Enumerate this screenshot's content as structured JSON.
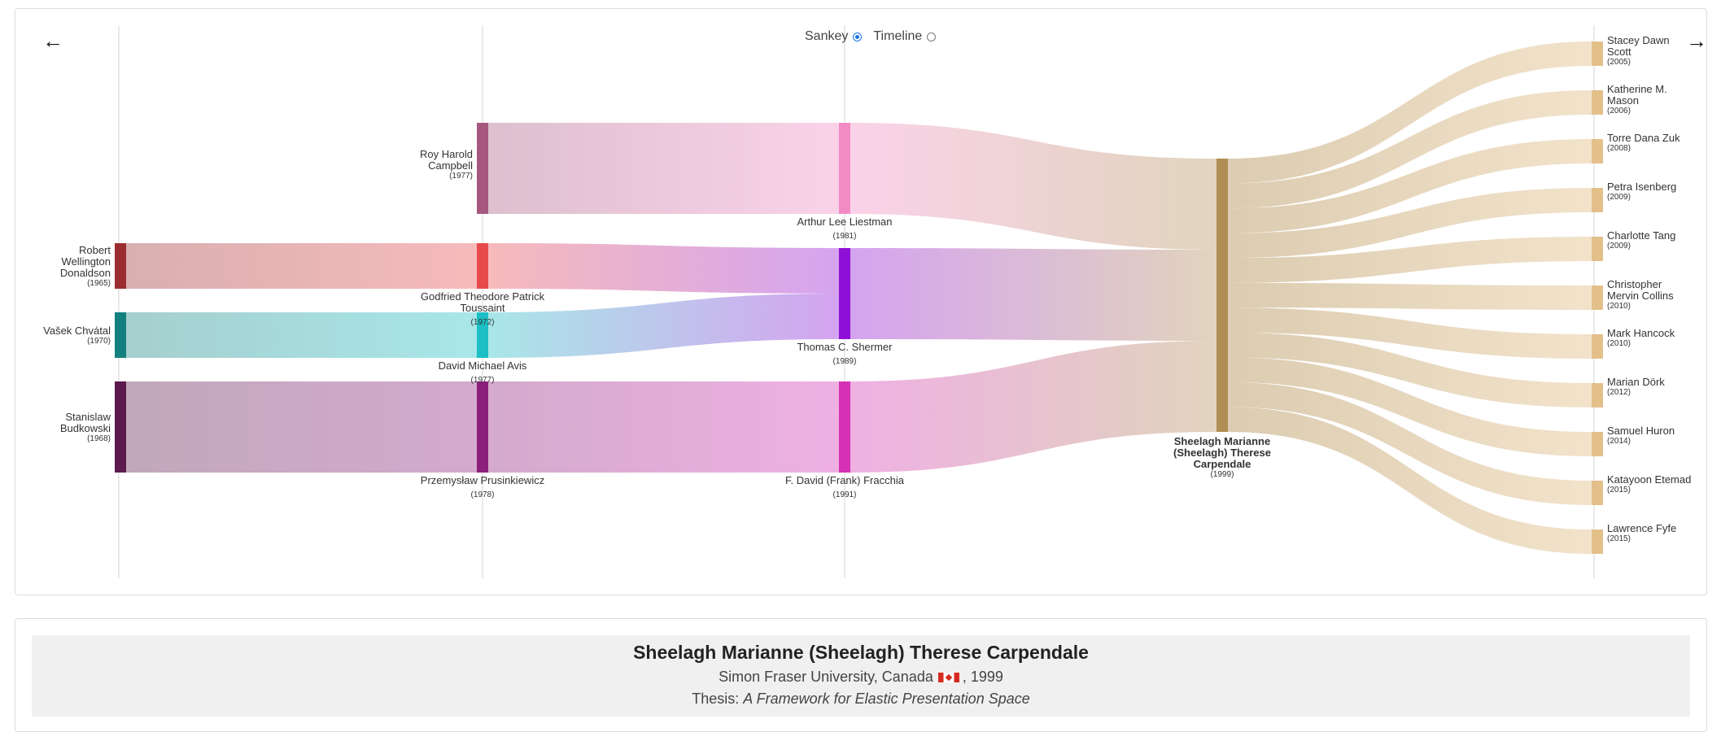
{
  "navigation": {
    "back_icon": "arrow-left-icon",
    "forward_icon": "arrow-right-icon",
    "back_glyph": "←",
    "forward_glyph": "→"
  },
  "view_toggle": {
    "sankey_label": "Sankey",
    "timeline_label": "Timeline",
    "selected": "Sankey"
  },
  "focus": {
    "name": "Sheelagh Marianne (Sheelagh) Therese Carpendale",
    "institution": "Simon Fraser University, Canada",
    "flag_icon": "canada-flag-icon",
    "year_suffix": ", 1999",
    "thesis_prefix": "Thesis: ",
    "thesis_title": "A Framework for Elastic Presentation Space"
  },
  "chart_data": {
    "type": "sankey",
    "nodes": [
      {
        "id": "donaldson",
        "lines": [
          "Robert",
          "Wellington",
          "Donaldson"
        ],
        "year": "(1965)",
        "column": 0,
        "color": "#9b2d30"
      },
      {
        "id": "chvatal",
        "lines": [
          "Vašek Chvátal"
        ],
        "year": "(1970)",
        "column": 0,
        "color": "#13807f"
      },
      {
        "id": "budkowski",
        "lines": [
          "Stanislaw",
          "Budkowski"
        ],
        "year": "(1968)",
        "column": 0,
        "color": "#5c1a4e"
      },
      {
        "id": "campbell",
        "lines": [
          "Roy Harold",
          "Campbell"
        ],
        "year": "(1977)",
        "column": 1,
        "color": "#a6587f"
      },
      {
        "id": "toussaint",
        "lines": [
          "Godfried Theodore Patrick",
          "Toussaint"
        ],
        "year": "(1972)",
        "column": 1,
        "color": "#e84a4c"
      },
      {
        "id": "avis",
        "lines": [
          "David Michael Avis"
        ],
        "year": "(1977)",
        "column": 1,
        "color": "#1bbfc4"
      },
      {
        "id": "prusinkiewicz",
        "lines": [
          "Przemysław Prusinkiewicz"
        ],
        "year": "(1978)",
        "column": 1,
        "color": "#8c1f7c"
      },
      {
        "id": "liestman",
        "lines": [
          "Arthur Lee Liestman"
        ],
        "year": "(1981)",
        "column": 2,
        "color": "#f28ac4"
      },
      {
        "id": "shermer",
        "lines": [
          "Thomas C. Shermer"
        ],
        "year": "(1989)",
        "column": 2,
        "color": "#8f0fd6"
      },
      {
        "id": "fracchia",
        "lines": [
          "F. David (Frank) Fracchia"
        ],
        "year": "(1991)",
        "column": 2,
        "color": "#d431b5"
      },
      {
        "id": "carpendale",
        "lines": [
          "Sheelagh Marianne",
          "(Sheelagh) Therese",
          "Carpendale"
        ],
        "year": "(1999)",
        "column": 3,
        "color": "#b08d52",
        "focus": true
      },
      {
        "id": "scott",
        "lines": [
          "Stacey Dawn",
          "Scott"
        ],
        "year": "(2005)",
        "column": 4,
        "color": "#e3c08a"
      },
      {
        "id": "mason",
        "lines": [
          "Katherine M.",
          "Mason"
        ],
        "year": "(2006)",
        "column": 4,
        "color": "#e3c08a"
      },
      {
        "id": "zuk",
        "lines": [
          "Torre Dana Zuk"
        ],
        "year": "(2008)",
        "column": 4,
        "color": "#e3c08a"
      },
      {
        "id": "isenberg",
        "lines": [
          "Petra Isenberg"
        ],
        "year": "(2009)",
        "column": 4,
        "color": "#e3c08a"
      },
      {
        "id": "tang",
        "lines": [
          "Charlotte Tang"
        ],
        "year": "(2009)",
        "column": 4,
        "color": "#e3c08a"
      },
      {
        "id": "collins",
        "lines": [
          "Christopher",
          "Mervin Collins"
        ],
        "year": "(2010)",
        "column": 4,
        "color": "#e3c08a"
      },
      {
        "id": "hancock",
        "lines": [
          "Mark Hancock"
        ],
        "year": "(2010)",
        "column": 4,
        "color": "#e3c08a"
      },
      {
        "id": "dork",
        "lines": [
          "Marian Dörk"
        ],
        "year": "(2012)",
        "column": 4,
        "color": "#e3c08a"
      },
      {
        "id": "huron",
        "lines": [
          "Samuel Huron"
        ],
        "year": "(2014)",
        "column": 4,
        "color": "#e3c08a"
      },
      {
        "id": "etemad",
        "lines": [
          "Katayoon Etemad"
        ],
        "year": "(2015)",
        "column": 4,
        "color": "#e3c08a"
      },
      {
        "id": "fyfe",
        "lines": [
          "Lawrence Fyfe"
        ],
        "year": "(2015)",
        "column": 4,
        "color": "#e3c08a"
      }
    ],
    "links": [
      {
        "source": "donaldson",
        "target": "toussaint",
        "value": 1
      },
      {
        "source": "chvatal",
        "target": "avis",
        "value": 1
      },
      {
        "source": "budkowski",
        "target": "prusinkiewicz",
        "value": 2
      },
      {
        "source": "campbell",
        "target": "liestman",
        "value": 2
      },
      {
        "source": "toussaint",
        "target": "shermer",
        "value": 1
      },
      {
        "source": "avis",
        "target": "shermer",
        "value": 1
      },
      {
        "source": "prusinkiewicz",
        "target": "fracchia",
        "value": 2
      },
      {
        "source": "liestman",
        "target": "carpendale",
        "value": 2
      },
      {
        "source": "shermer",
        "target": "carpendale",
        "value": 2
      },
      {
        "source": "fracchia",
        "target": "carpendale",
        "value": 2
      },
      {
        "source": "carpendale",
        "target": "scott",
        "value": 0.5
      },
      {
        "source": "carpendale",
        "target": "mason",
        "value": 0.5
      },
      {
        "source": "carpendale",
        "target": "zuk",
        "value": 0.5
      },
      {
        "source": "carpendale",
        "target": "isenberg",
        "value": 0.5
      },
      {
        "source": "carpendale",
        "target": "tang",
        "value": 0.5
      },
      {
        "source": "carpendale",
        "target": "collins",
        "value": 0.5
      },
      {
        "source": "carpendale",
        "target": "hancock",
        "value": 0.5
      },
      {
        "source": "carpendale",
        "target": "dork",
        "value": 0.5
      },
      {
        "source": "carpendale",
        "target": "huron",
        "value": 0.5
      },
      {
        "source": "carpendale",
        "target": "etemad",
        "value": 0.5
      },
      {
        "source": "carpendale",
        "target": "fyfe",
        "value": 0.5
      }
    ]
  }
}
